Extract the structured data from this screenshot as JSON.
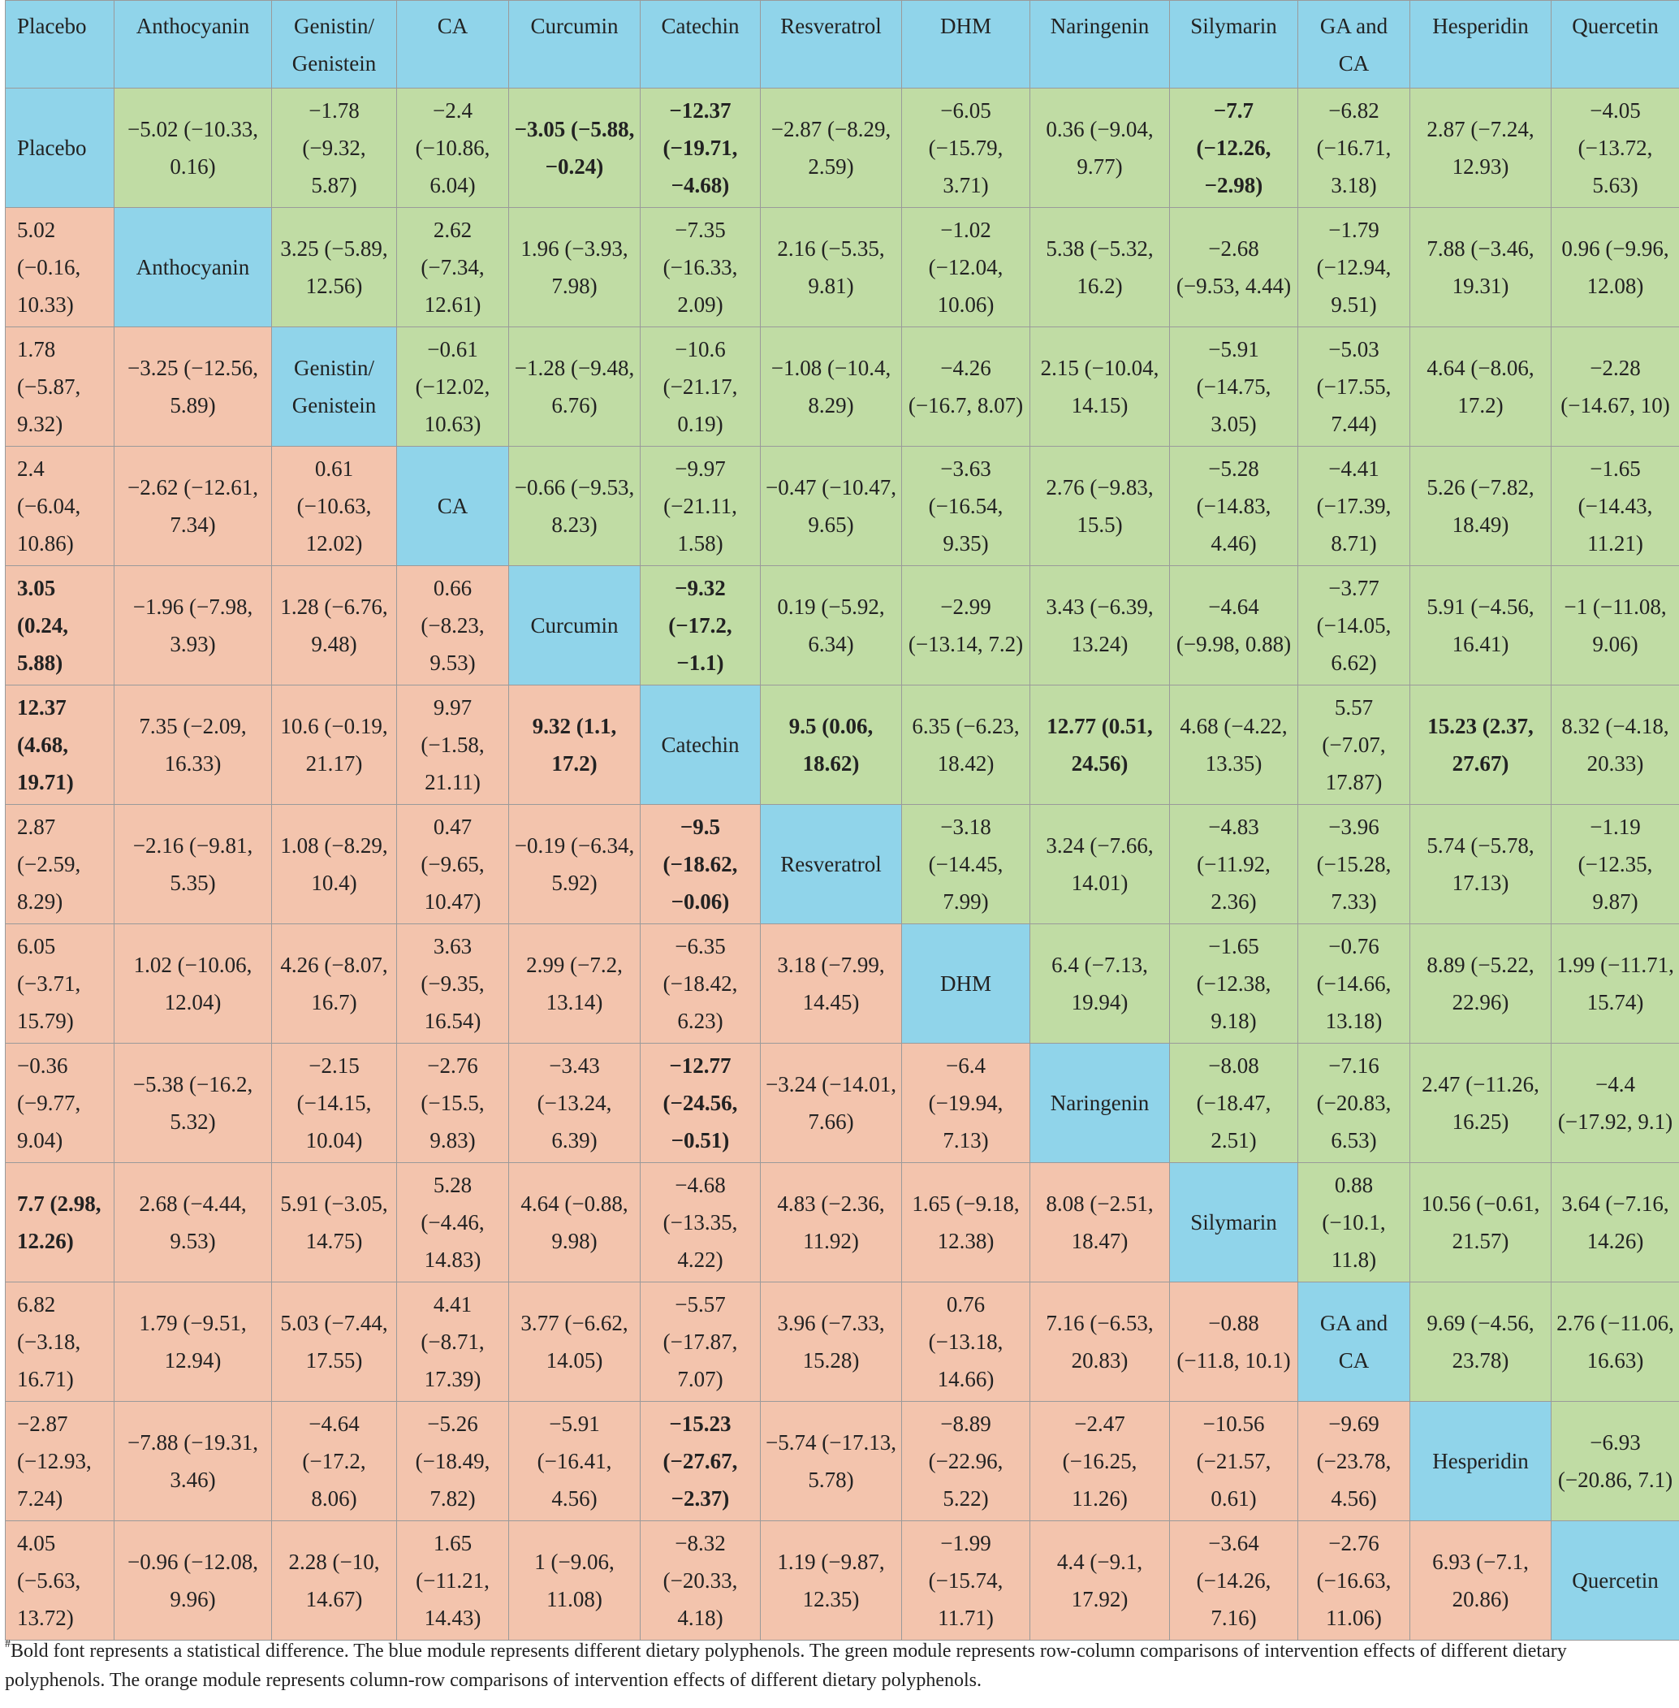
{
  "columns": [
    "Placebo",
    "Anthocyanin",
    "Genistin/ Genistein",
    "CA",
    "Curcumin",
    "Catechin",
    "Resveratrol",
    "DHM",
    "Naringenin",
    "Silymarin",
    "GA and CA",
    "Hesperidin",
    "Quercetin"
  ],
  "rows": [
    [
      "Placebo",
      "−5.02 (−10.33, 0.16)",
      "−1.78 (−9.32, 5.87)",
      "−2.4 (−10.86, 6.04)",
      "−3.05 (−5.88, −0.24)",
      "−12.37 (−19.71, −4.68)",
      "−2.87 (−8.29, 2.59)",
      "−6.05 (−15.79, 3.71)",
      "0.36 (−9.04, 9.77)",
      "−7.7 (−12.26, −2.98)",
      "−6.82 (−16.71, 3.18)",
      "2.87 (−7.24, 12.93)",
      "−4.05 (−13.72, 5.63)"
    ],
    [
      "5.02 (−0.16, 10.33)",
      "Anthocyanin",
      "3.25 (−5.89, 12.56)",
      "2.62 (−7.34, 12.61)",
      "1.96 (−3.93, 7.98)",
      "−7.35 (−16.33, 2.09)",
      "2.16 (−5.35, 9.81)",
      "−1.02 (−12.04, 10.06)",
      "5.38 (−5.32, 16.2)",
      "−2.68 (−9.53, 4.44)",
      "−1.79 (−12.94, 9.51)",
      "7.88 (−3.46, 19.31)",
      "0.96 (−9.96, 12.08)"
    ],
    [
      "1.78 (−5.87, 9.32)",
      "−3.25 (−12.56, 5.89)",
      "Genistin/ Genistein",
      "−0.61 (−12.02, 10.63)",
      "−1.28 (−9.48, 6.76)",
      "−10.6 (−21.17, 0.19)",
      "−1.08 (−10.4, 8.29)",
      "−4.26 (−16.7, 8.07)",
      "2.15 (−10.04, 14.15)",
      "−5.91 (−14.75, 3.05)",
      "−5.03 (−17.55, 7.44)",
      "4.64 (−8.06, 17.2)",
      "−2.28 (−14.67, 10)"
    ],
    [
      "2.4 (−6.04, 10.86)",
      "−2.62 (−12.61, 7.34)",
      "0.61 (−10.63, 12.02)",
      "CA",
      "−0.66 (−9.53, 8.23)",
      "−9.97 (−21.11, 1.58)",
      "−0.47 (−10.47, 9.65)",
      "−3.63 (−16.54, 9.35)",
      "2.76 (−9.83, 15.5)",
      "−5.28 (−14.83, 4.46)",
      "−4.41 (−17.39, 8.71)",
      "5.26 (−7.82, 18.49)",
      "−1.65 (−14.43, 11.21)"
    ],
    [
      "3.05 (0.24, 5.88)",
      "−1.96 (−7.98, 3.93)",
      "1.28 (−6.76, 9.48)",
      "0.66 (−8.23, 9.53)",
      "Curcumin",
      "−9.32 (−17.2, −1.1)",
      "0.19 (−5.92, 6.34)",
      "−2.99 (−13.14, 7.2)",
      "3.43 (−6.39, 13.24)",
      "−4.64 (−9.98, 0.88)",
      "−3.77 (−14.05, 6.62)",
      "5.91 (−4.56, 16.41)",
      "−1 (−11.08, 9.06)"
    ],
    [
      "12.37 (4.68, 19.71)",
      "7.35 (−2.09, 16.33)",
      "10.6 (−0.19, 21.17)",
      "9.97 (−1.58, 21.11)",
      "9.32 (1.1, 17.2)",
      "Catechin",
      "9.5 (0.06, 18.62)",
      "6.35 (−6.23, 18.42)",
      "12.77 (0.51, 24.56)",
      "4.68 (−4.22, 13.35)",
      "5.57 (−7.07, 17.87)",
      "15.23 (2.37, 27.67)",
      "8.32 (−4.18, 20.33)"
    ],
    [
      "2.87 (−2.59, 8.29)",
      "−2.16 (−9.81, 5.35)",
      "1.08 (−8.29, 10.4)",
      "0.47 (−9.65, 10.47)",
      "−0.19 (−6.34, 5.92)",
      "−9.5 (−18.62, −0.06)",
      "Resveratrol",
      "−3.18 (−14.45, 7.99)",
      "3.24 (−7.66, 14.01)",
      "−4.83 (−11.92, 2.36)",
      "−3.96 (−15.28, 7.33)",
      "5.74 (−5.78, 17.13)",
      "−1.19 (−12.35, 9.87)"
    ],
    [
      "6.05 (−3.71, 15.79)",
      "1.02 (−10.06, 12.04)",
      "4.26 (−8.07, 16.7)",
      "3.63 (−9.35, 16.54)",
      "2.99 (−7.2, 13.14)",
      "−6.35 (−18.42, 6.23)",
      "3.18 (−7.99, 14.45)",
      "DHM",
      "6.4 (−7.13, 19.94)",
      "−1.65 (−12.38, 9.18)",
      "−0.76 (−14.66, 13.18)",
      "8.89 (−5.22, 22.96)",
      "1.99 (−11.71, 15.74)"
    ],
    [
      "−0.36 (−9.77, 9.04)",
      "−5.38 (−16.2, 5.32)",
      "−2.15 (−14.15, 10.04)",
      "−2.76 (−15.5, 9.83)",
      "−3.43 (−13.24, 6.39)",
      "−12.77 (−24.56, −0.51)",
      "−3.24 (−14.01, 7.66)",
      "−6.4 (−19.94, 7.13)",
      "Naringenin",
      "−8.08 (−18.47, 2.51)",
      "−7.16 (−20.83, 6.53)",
      "2.47 (−11.26, 16.25)",
      "−4.4 (−17.92, 9.1)"
    ],
    [
      "7.7 (2.98, 12.26)",
      "2.68 (−4.44, 9.53)",
      "5.91 (−3.05, 14.75)",
      "5.28 (−4.46, 14.83)",
      "4.64 (−0.88, 9.98)",
      "−4.68 (−13.35, 4.22)",
      "4.83 (−2.36, 11.92)",
      "1.65 (−9.18, 12.38)",
      "8.08 (−2.51, 18.47)",
      "Silymarin",
      "0.88 (−10.1, 11.8)",
      "10.56 (−0.61, 21.57)",
      "3.64 (−7.16, 14.26)"
    ],
    [
      "6.82 (−3.18, 16.71)",
      "1.79 (−9.51, 12.94)",
      "5.03 (−7.44, 17.55)",
      "4.41 (−8.71, 17.39)",
      "3.77 (−6.62, 14.05)",
      "−5.57 (−17.87, 7.07)",
      "3.96 (−7.33, 15.28)",
      "0.76 (−13.18, 14.66)",
      "7.16 (−6.53, 20.83)",
      "−0.88 (−11.8, 10.1)",
      "GA and CA",
      "9.69 (−4.56, 23.78)",
      "2.76 (−11.06, 16.63)"
    ],
    [
      "−2.87 (−12.93, 7.24)",
      "−7.88 (−19.31, 3.46)",
      "−4.64 (−17.2, 8.06)",
      "−5.26 (−18.49, 7.82)",
      "−5.91 (−16.41, 4.56)",
      "−15.23 (−27.67, −2.37)",
      "−5.74 (−17.13, 5.78)",
      "−8.89 (−22.96, 5.22)",
      "−2.47 (−16.25, 11.26)",
      "−10.56 (−21.57, 0.61)",
      "−9.69 (−23.78, 4.56)",
      "Hesperidin",
      "−6.93 (−20.86, 7.1)"
    ],
    [
      "4.05 (−5.63, 13.72)",
      "−0.96 (−12.08, 9.96)",
      "2.28 (−10, 14.67)",
      "1.65 (−11.21, 14.43)",
      "1 (−9.06, 11.08)",
      "−8.32 (−20.33, 4.18)",
      "1.19 (−9.87, 12.35)",
      "−1.99 (−15.74, 11.71)",
      "4.4 (−9.1, 17.92)",
      "−3.64 (−14.26, 7.16)",
      "−2.76 (−16.63, 11.06)",
      "6.93 (−7.1, 20.86)",
      "Quercetin"
    ]
  ],
  "bold_cells": [
    [
      0,
      4
    ],
    [
      0,
      5
    ],
    [
      0,
      9
    ],
    [
      4,
      0
    ],
    [
      4,
      5
    ],
    [
      5,
      0
    ],
    [
      5,
      4
    ],
    [
      5,
      6
    ],
    [
      5,
      8
    ],
    [
      5,
      11
    ],
    [
      6,
      5
    ],
    [
      8,
      5
    ],
    [
      9,
      0
    ],
    [
      11,
      5
    ]
  ],
  "colors": {
    "blue": "#90d4ea",
    "green": "#c0dca4",
    "orange": "#f3c4ad"
  },
  "footnote": {
    "marker": "#",
    "text": "Bold font represents a statistical difference. The blue module represents different dietary polyphenols. The green module represents row-column comparisons of intervention effects of different dietary polyphenols. The orange module represents column-row comparisons of intervention effects of different dietary polyphenols."
  }
}
